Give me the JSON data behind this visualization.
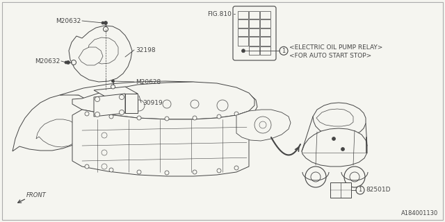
{
  "background_color": "#f5f5f0",
  "border_color": "#aaaaaa",
  "line_color": "#444444",
  "text_color": "#444444",
  "diagram_id": "A184001130",
  "font_size": 6.5,
  "labels": {
    "M20632_top": "M20632",
    "M20632_mid": "M20632",
    "M20628": "M20628",
    "32198": "32198",
    "30919": "30919",
    "FIG810": "FIG.810",
    "relay_line1": "<ELECTRIC OIL PUMP RELAY>",
    "relay_line2": "<FOR AUTO START STOP>",
    "front": "FRONT",
    "part1": "82501D"
  }
}
